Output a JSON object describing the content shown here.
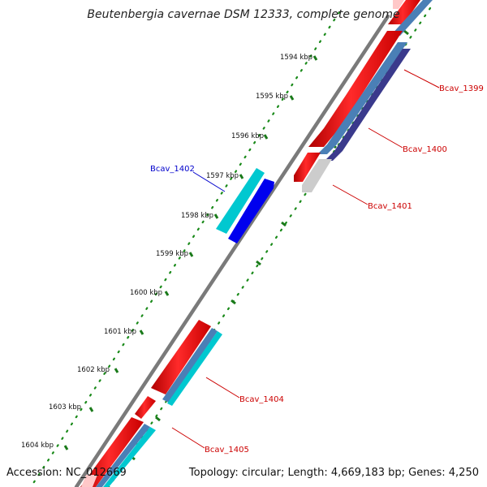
{
  "map": {
    "title": "Beutenbergia cavernae DSM 12333, complete genome",
    "accession": "Accession: NC_012669",
    "summary": "Topology: circular; Length: 4,669,183 bp; Genes: 4,250"
  },
  "tick_labels": [
    "1594 kbp",
    "1595 kbp",
    "1596 kbp",
    "1597 kbp",
    "1598 kbp",
    "1599 kbp",
    "1600 kbp",
    "1601 kbp",
    "1602 kbp",
    "1603 kbp",
    "1604 kbp"
  ],
  "gene_labels": [
    {
      "id": "Bcav_1399",
      "color": "#cc0000"
    },
    {
      "id": "Bcav_1400",
      "color": "#cc0000"
    },
    {
      "id": "Bcav_1401",
      "color": "#cc0000"
    },
    {
      "id": "Bcav_1402",
      "color": "#0000cc"
    },
    {
      "id": "Bcav_1404",
      "color": "#cc0000"
    },
    {
      "id": "Bcav_1405",
      "color": "#cc0000"
    }
  ],
  "colors": {
    "backbone": "#7a7a7a",
    "forward_cds": "#ff0000",
    "forward_rna": "#00c8d0",
    "reverse_cds": "#0000ee",
    "steelblue": "#4a7fb6",
    "navy": "#3a3a8c",
    "gray_feature": "#c8c8c8",
    "tick_dots": "#1a8a1a"
  }
}
